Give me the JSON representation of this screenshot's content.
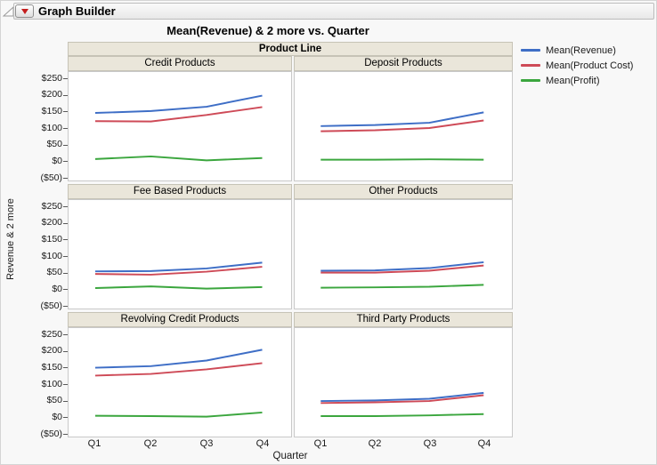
{
  "window": {
    "title": "Graph Builder"
  },
  "chart": {
    "title": "Mean(Revenue) & 2 more vs. Quarter",
    "group_label": "Product Line",
    "y_axis_label": "Revenue & 2 more",
    "x_axis_label": "Quarter"
  },
  "legend": {
    "items": [
      {
        "label": "Mean(Revenue)",
        "color": "#3E6EC6"
      },
      {
        "label": "Mean(Product Cost)",
        "color": "#CE4A57"
      },
      {
        "label": "Mean(Profit)",
        "color": "#3BA63E"
      }
    ]
  },
  "chart_data": {
    "type": "line",
    "trellis_by": "Product Line",
    "categories": [
      "Q1",
      "Q2",
      "Q3",
      "Q4"
    ],
    "xlabel": "Quarter",
    "ylabel": "Revenue & 2 more",
    "ylim": [
      -50,
      250
    ],
    "ytick_labels": [
      "$250",
      "$200",
      "$150",
      "$100",
      "$50",
      "$0",
      "($50)"
    ],
    "ytick_values": [
      250,
      200,
      150,
      100,
      50,
      0,
      -50
    ],
    "grid": false,
    "legend_position": "right",
    "panels": [
      {
        "name": "Credit Products",
        "series": [
          {
            "name": "Mean(Revenue)",
            "color": "#3E6EC6",
            "values": [
              146,
              152,
              165,
              199
            ]
          },
          {
            "name": "Mean(Product Cost)",
            "color": "#CE4A57",
            "values": [
              121,
              120,
              140,
              164
            ]
          },
          {
            "name": "Mean(Profit)",
            "color": "#3BA63E",
            "values": [
              5,
              13,
              1,
              8
            ]
          }
        ]
      },
      {
        "name": "Deposit Products",
        "series": [
          {
            "name": "Mean(Revenue)",
            "color": "#3E6EC6",
            "values": [
              106,
              109,
              116,
              148
            ]
          },
          {
            "name": "Mean(Product Cost)",
            "color": "#CE4A57",
            "values": [
              90,
              93,
              100,
              123
            ]
          },
          {
            "name": "Mean(Profit)",
            "color": "#3BA63E",
            "values": [
              3,
              3,
              4,
              3
            ]
          }
        ]
      },
      {
        "name": "Fee Based Products",
        "series": [
          {
            "name": "Mean(Revenue)",
            "color": "#3E6EC6",
            "values": [
              53,
              54,
              62,
              80
            ]
          },
          {
            "name": "Mean(Product Cost)",
            "color": "#CE4A57",
            "values": [
              45,
              43,
              52,
              67
            ]
          },
          {
            "name": "Mean(Profit)",
            "color": "#3BA63E",
            "values": [
              2,
              7,
              0,
              5
            ]
          }
        ]
      },
      {
        "name": "Other Products",
        "series": [
          {
            "name": "Mean(Revenue)",
            "color": "#3E6EC6",
            "values": [
              55,
              56,
              63,
              81
            ]
          },
          {
            "name": "Mean(Product Cost)",
            "color": "#CE4A57",
            "values": [
              49,
              49,
              55,
              71
            ]
          },
          {
            "name": "Mean(Profit)",
            "color": "#3BA63E",
            "values": [
              3,
              4,
              6,
              12
            ]
          }
        ]
      },
      {
        "name": "Revolving Credit Products",
        "series": [
          {
            "name": "Mean(Revenue)",
            "color": "#3E6EC6",
            "values": [
              150,
              155,
              172,
              205
            ]
          },
          {
            "name": "Mean(Product Cost)",
            "color": "#CE4A57",
            "values": [
              126,
              131,
              145,
              164
            ]
          },
          {
            "name": "Mean(Profit)",
            "color": "#3BA63E",
            "values": [
              3,
              2,
              0,
              13
            ]
          }
        ]
      },
      {
        "name": "Third Party Products",
        "series": [
          {
            "name": "Mean(Revenue)",
            "color": "#3E6EC6",
            "values": [
              48,
              50,
              55,
              73
            ]
          },
          {
            "name": "Mean(Product Cost)",
            "color": "#CE4A57",
            "values": [
              42,
              44,
              48,
              66
            ]
          },
          {
            "name": "Mean(Profit)",
            "color": "#3BA63E",
            "values": [
              2,
              2,
              4,
              8
            ]
          }
        ]
      }
    ]
  }
}
